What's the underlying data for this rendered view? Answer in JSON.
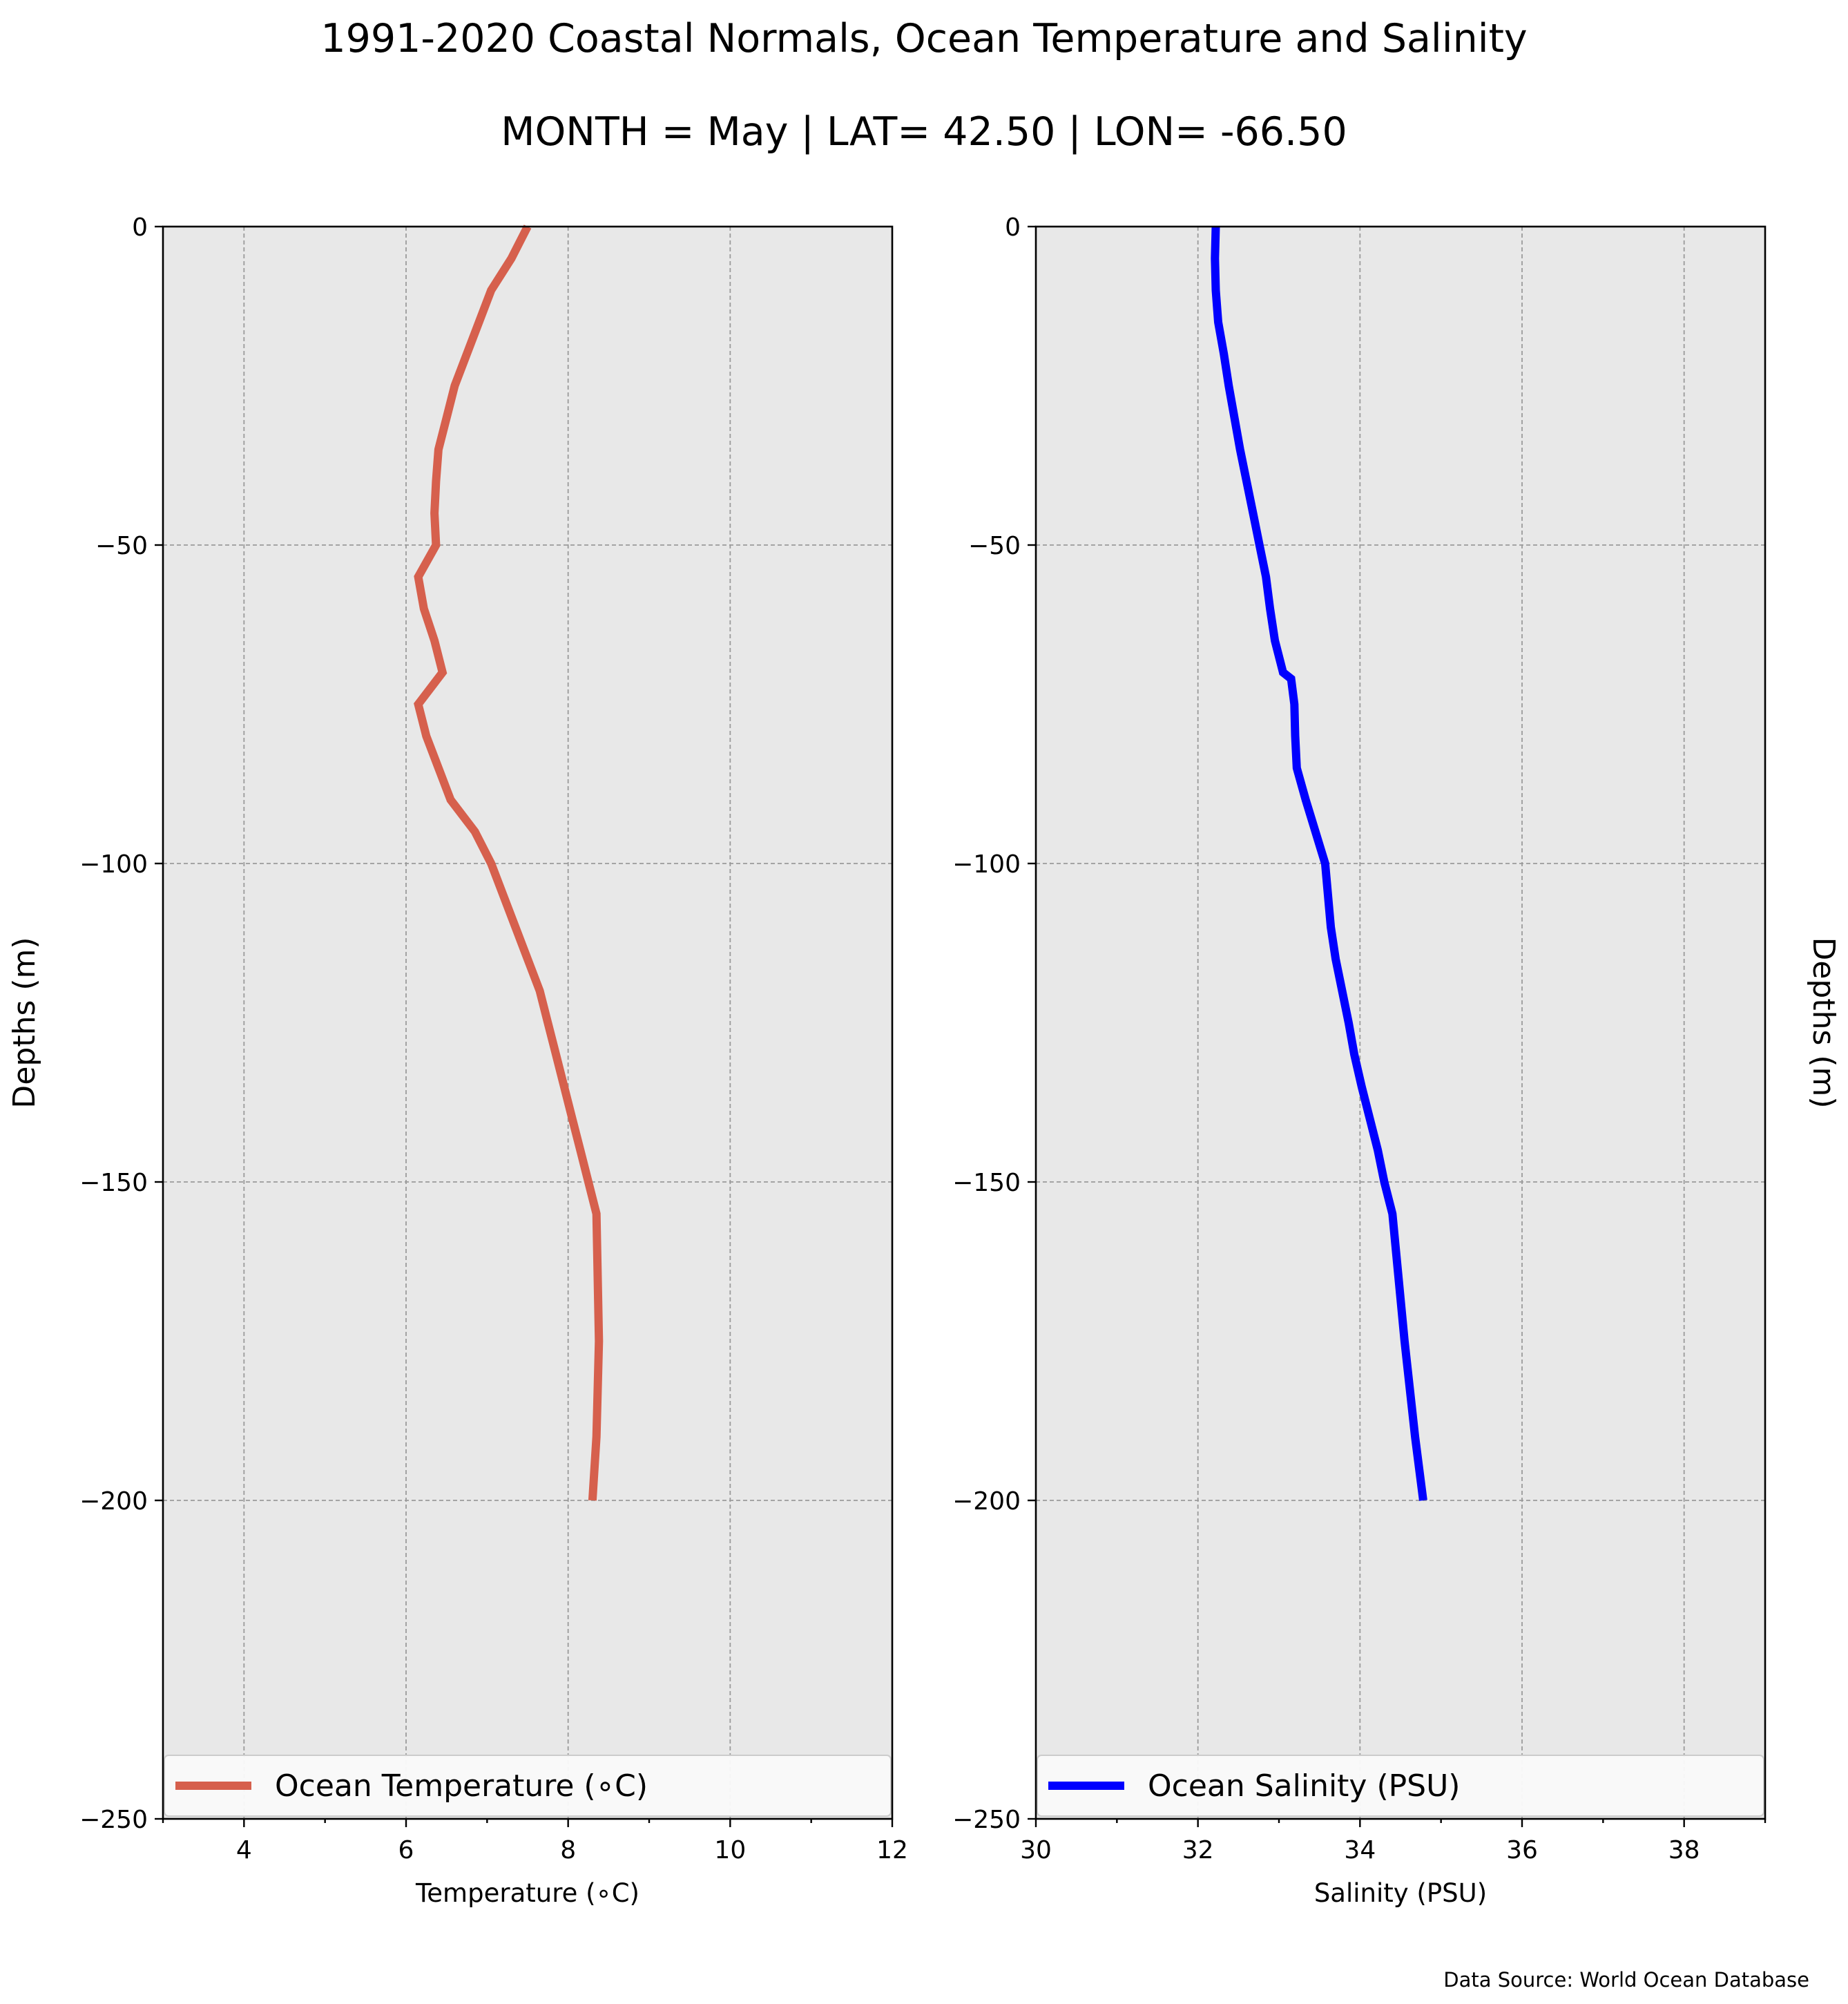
{
  "figure": {
    "title_line1": "1991-2020 Coastal Normals, Ocean Temperature and Salinity",
    "title_line2": "MONTH = May | LAT= 42.50 | LON= -66.50",
    "source": "Data Source: World Ocean Database"
  },
  "chart_data": [
    {
      "type": "line",
      "ylabel": "Depths (m)",
      "xlabel": "Temperature (∘C)",
      "xlim": [
        3,
        12
      ],
      "ylim": [
        -250,
        0
      ],
      "xticks": [
        4,
        6,
        8,
        10,
        12
      ],
      "xtick_labels": [
        "4",
        "6",
        "8",
        "10",
        "12"
      ],
      "yticks": [
        0,
        -50,
        -100,
        -150,
        -200,
        -250
      ],
      "ytick_labels": [
        "0",
        "−50",
        "−100",
        "−150",
        "−200",
        "−250"
      ],
      "grid": true,
      "legend_placement": "lower",
      "series": [
        {
          "name": "Ocean Temperature (∘C)",
          "color": "#d6604d",
          "x": [
            7.5,
            7.3,
            7.05,
            6.9,
            6.75,
            6.6,
            6.5,
            6.4,
            6.37,
            6.35,
            6.37,
            6.15,
            6.22,
            6.35,
            6.45,
            6.15,
            6.25,
            6.4,
            6.55,
            6.85,
            7.05,
            7.2,
            7.35,
            7.5,
            7.65,
            7.75,
            7.85,
            7.95,
            8.05,
            8.15,
            8.25,
            8.35,
            8.38,
            8.35,
            8.3
          ],
          "y": [
            0,
            -5,
            -10,
            -15,
            -20,
            -25,
            -30,
            -35,
            -40,
            -45,
            -50,
            -55,
            -60,
            -65,
            -70,
            -75,
            -80,
            -85,
            -90,
            -95,
            -100,
            -105,
            -110,
            -115,
            -120,
            -125,
            -130,
            -135,
            -140,
            -145,
            -150,
            -155,
            -175,
            -190,
            -200
          ]
        }
      ]
    },
    {
      "type": "line",
      "ylabel": "Depths (m)",
      "xlabel": "Salinity (PSU)",
      "xlim": [
        30,
        39
      ],
      "ylim": [
        -250,
        0
      ],
      "xticks": [
        30,
        32,
        34,
        36,
        38
      ],
      "xtick_labels": [
        "30",
        "32",
        "34",
        "36",
        "38"
      ],
      "yticks": [
        0,
        -50,
        -100,
        -150,
        -200,
        -250
      ],
      "ytick_labels": [
        "0",
        "−50",
        "−100",
        "−150",
        "−200",
        "−250"
      ],
      "grid": true,
      "legend_placement": "lower",
      "series": [
        {
          "name": "Ocean Salinity (PSU)",
          "color": "#0000ff",
          "x": [
            32.22,
            32.21,
            32.22,
            32.25,
            32.32,
            32.38,
            32.45,
            32.52,
            32.6,
            32.68,
            32.76,
            32.84,
            32.89,
            32.95,
            33.05,
            33.15,
            33.19,
            33.2,
            33.22,
            33.33,
            33.45,
            33.57,
            33.64,
            33.7,
            33.78,
            33.86,
            33.93,
            34.02,
            34.12,
            34.22,
            34.3,
            34.4,
            34.55,
            34.68,
            34.78
          ],
          "y": [
            0,
            -5,
            -10,
            -15,
            -20,
            -25,
            -30,
            -35,
            -40,
            -45,
            -50,
            -55,
            -60,
            -65,
            -70,
            -71,
            -75,
            -80,
            -85,
            -90,
            -95,
            -100,
            -110,
            -115,
            -120,
            -125,
            -130,
            -135,
            -140,
            -145,
            -150,
            -155,
            -175,
            -190,
            -200
          ]
        }
      ]
    }
  ]
}
